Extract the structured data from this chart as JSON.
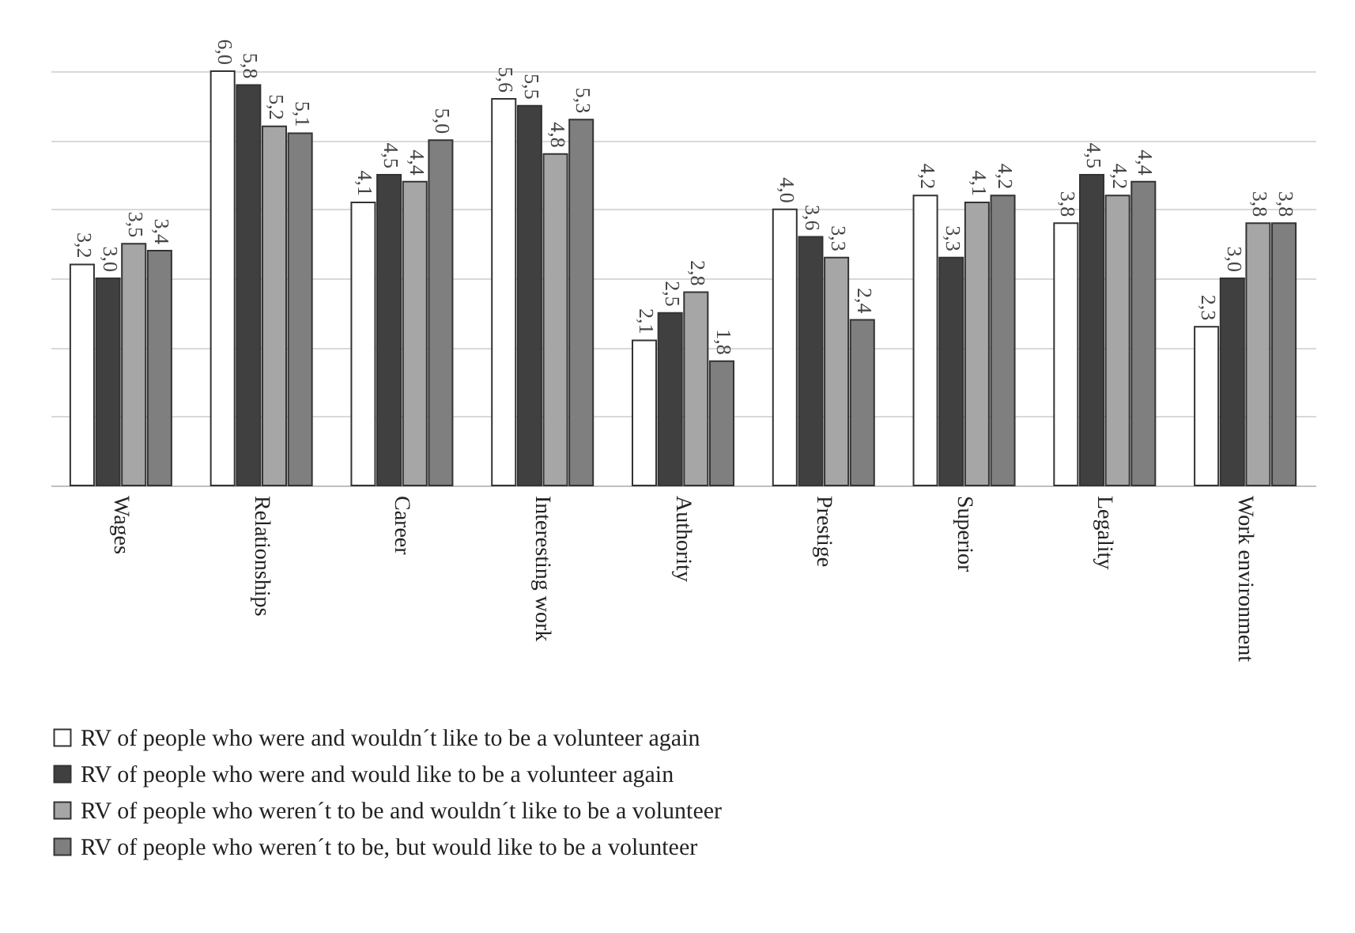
{
  "chart_data": {
    "type": "bar",
    "categories": [
      "Wages",
      "Relationships",
      "Career",
      "Interesting work",
      "Authority",
      "Prestige",
      "Superior",
      "Legality",
      "Work environment"
    ],
    "series": [
      {
        "name": "RV of people who were and wouldn´t like to be a volunteer again",
        "color": "#ffffff",
        "values": [
          3.2,
          6.0,
          4.1,
          5.6,
          2.1,
          4.0,
          4.2,
          3.8,
          2.3
        ],
        "value_labels": [
          "3,2",
          "6,0",
          "4,1",
          "5,6",
          "2,1",
          "4,0",
          "4,2",
          "3,8",
          "2,3"
        ]
      },
      {
        "name": "RV of people who were and would like to be a volunteer again",
        "color": "#404040",
        "values": [
          3.0,
          5.8,
          4.5,
          5.5,
          2.5,
          3.6,
          3.3,
          4.5,
          3.0
        ],
        "value_labels": [
          "3,0",
          "5,8",
          "4,5",
          "5,5",
          "2,5",
          "3,6",
          "3,3",
          "4,5",
          "3,0"
        ]
      },
      {
        "name": "RV of people who weren´t to be and wouldn´t like to be a volunteer",
        "color": "#a6a6a6",
        "values": [
          3.5,
          5.2,
          4.4,
          4.8,
          2.8,
          3.3,
          4.1,
          4.2,
          3.8
        ],
        "value_labels": [
          "3,5",
          "5,2",
          "4,4",
          "4,8",
          "2,8",
          "3,3",
          "4,1",
          "4,2",
          "3,8"
        ]
      },
      {
        "name": "RV of people who weren´t to be, but would like to be a volunteer",
        "color": "#7f7f7f",
        "values": [
          3.4,
          5.1,
          5.0,
          5.3,
          1.8,
          2.4,
          4.2,
          4.4,
          3.8
        ],
        "value_labels": [
          "3,4",
          "5,1",
          "5,0",
          "5,3",
          "1,8",
          "2,4",
          "4,2",
          "4,4",
          "3,8"
        ]
      }
    ],
    "grid": "y",
    "legend": "bottom",
    "tick_labels": "x"
  }
}
